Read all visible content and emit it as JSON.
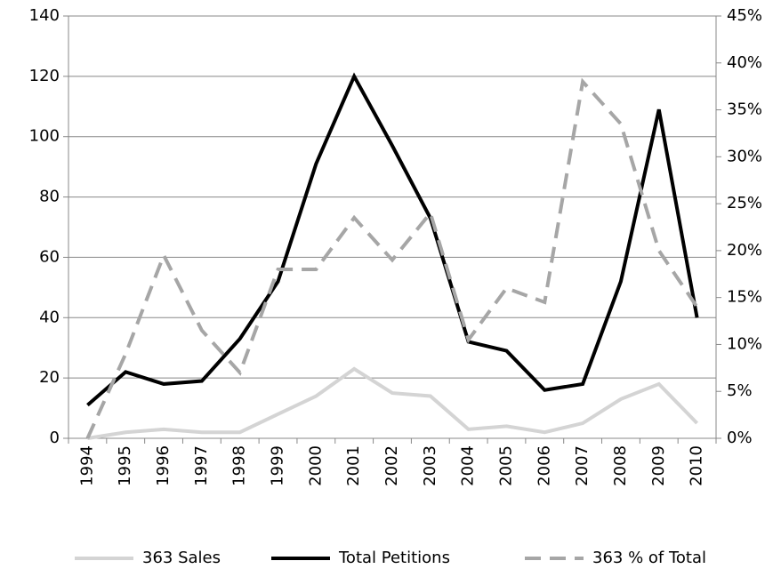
{
  "chart_data": {
    "type": "line",
    "categories": [
      "1994",
      "1995",
      "1996",
      "1997",
      "1998",
      "1999",
      "2000",
      "2001",
      "2002",
      "2003",
      "2004",
      "2005",
      "2006",
      "2007",
      "2008",
      "2009",
      "2010"
    ],
    "series": [
      {
        "name": "363 Sales",
        "color": "#d4d4d4",
        "style": "solid",
        "values": [
          0,
          2,
          3,
          2,
          2,
          8,
          14,
          23,
          15,
          14,
          3,
          4,
          2,
          5,
          13,
          18,
          5
        ]
      },
      {
        "name": "Total Petitions",
        "color": "#000000",
        "style": "solid",
        "values": [
          11,
          22,
          18,
          19,
          33,
          52,
          91,
          120,
          97,
          73,
          32,
          29,
          16,
          18,
          52,
          109,
          40
        ]
      },
      {
        "name": "363 % of Total",
        "color": "#a6a6a6",
        "style": "dashed",
        "axis": "y2",
        "values": [
          0,
          9,
          19.5,
          11.5,
          7,
          18,
          18,
          23.5,
          19,
          24,
          10.5,
          16,
          14.5,
          38,
          33.5,
          20,
          14
        ]
      }
    ],
    "ylim": [
      0,
      140
    ],
    "yticks": [
      0,
      20,
      40,
      60,
      80,
      100,
      120,
      140
    ],
    "y2lim": [
      0,
      45
    ],
    "y2ticks": [
      {
        "value": 0,
        "label": "0%"
      },
      {
        "value": 5,
        "label": "5%"
      },
      {
        "value": 10,
        "label": "10%"
      },
      {
        "value": 15,
        "label": "15%"
      },
      {
        "value": 20,
        "label": "20%"
      },
      {
        "value": 25,
        "label": "25%"
      },
      {
        "value": 30,
        "label": "30%"
      },
      {
        "value": 35,
        "label": "35%"
      },
      {
        "value": 40,
        "label": "40%"
      },
      {
        "value": 45,
        "label": "45%"
      }
    ],
    "grid": true,
    "legend": "bottom"
  }
}
